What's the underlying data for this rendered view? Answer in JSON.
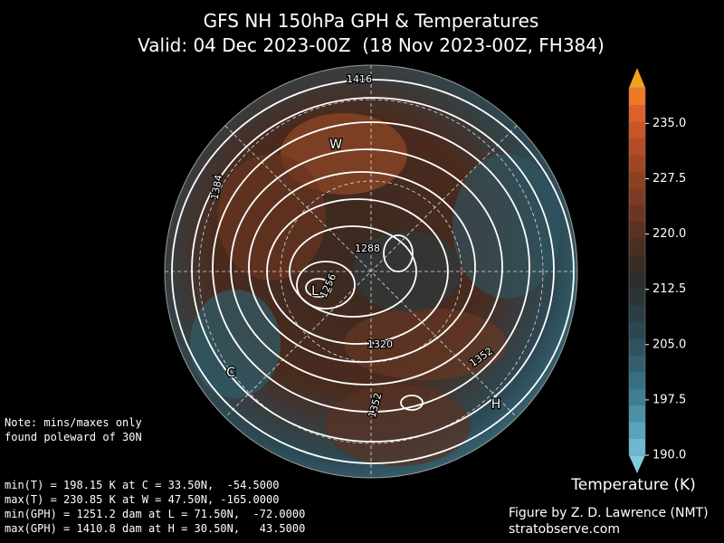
{
  "title": {
    "line1": "GFS NH 150hPa GPH & Temperatures",
    "line2": "Valid: 04 Dec 2023-00Z  (18 Nov 2023-00Z, FH384)"
  },
  "map": {
    "contour_labels": [
      "1416",
      "1384",
      "1288",
      "1256",
      "1320",
      "1352",
      "1352"
    ],
    "markers": [
      "W",
      "L",
      "C",
      "H"
    ]
  },
  "colorbar": {
    "label": "Temperature (K)",
    "ticks": [
      "190.0",
      "197.5",
      "205.0",
      "212.5",
      "220.0",
      "227.5",
      "235.0"
    ]
  },
  "notes": {
    "caveat": [
      "Note: mins/maxes only",
      "found poleward of 30N"
    ],
    "stats": [
      "min(T) = 198.15 K at C = 33.50N,  -54.5000",
      "max(T) = 230.85 K at W = 47.50N, -165.0000",
      "min(GPH) = 1251.2 dam at L = 71.50N,  -72.0000",
      "max(GPH) = 1410.8 dam at H = 30.50N,   43.5000"
    ]
  },
  "credits": [
    "Figure by Z. D. Lawrence (NMT)",
    "stratobserve.com"
  ]
}
